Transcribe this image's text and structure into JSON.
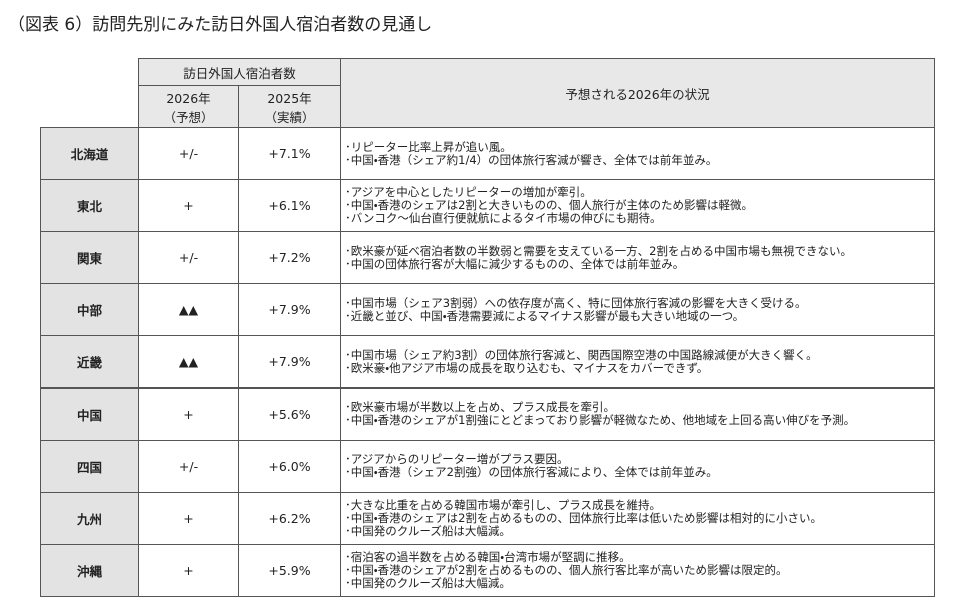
{
  "title": "（図表 6）訪問先別にみた訪日外国人宿泊者数の見通し",
  "header": {
    "group": "訪日外国人宿泊者数",
    "col_2026": [
      "2026年",
      "（予想）"
    ],
    "col_2025": [
      "2025年",
      "（実績）"
    ],
    "notes": "予想される2026年の状況"
  },
  "rows": [
    {
      "region": "北海道",
      "forecast": "+/-",
      "actual": "+7.1%",
      "notes": [
        "･リピーター比率上昇が追い風。",
        "･中国・香港（シェア約1/4）の団体旅行客減が響き、全体では前年並み。"
      ]
    },
    {
      "region": "東北",
      "forecast": "+",
      "actual": "+6.1%",
      "notes": [
        "･アジアを中心としたリピーターの増加が牽引。",
        "･中国・香港のシェアは2割と大きいものの、個人旅行が主体のため影響は軽微。",
        "･バンコク～仙台直行便就航によるタイ市場の伸びにも期待。"
      ]
    },
    {
      "region": "関東",
      "forecast": "+/-",
      "actual": "+7.2%",
      "notes": [
        "･欧米豪が延べ宿泊者数の半数弱と需要を支えている一方、2割を占める中国市場も無視できない。",
        "･中国の団体旅行客が大幅に減少するものの、全体では前年並み。"
      ]
    },
    {
      "region": "中部",
      "forecast": "▲▲",
      "actual": "+7.9%",
      "notes": [
        "･中国市場（シェア3割弱）への依存度が高く、特に団体旅行客減の影響を大きく受ける。",
        "･近畿と並び、中国・香港需要減によるマイナス影響が最も大きい地域の一つ。"
      ]
    },
    {
      "region": "近畿",
      "forecast": "▲▲",
      "actual": "+7.9%",
      "notes": [
        "･中国市場（シェア約3割）の団体旅行客減と、関西国際空港の中国路線減便が大きく響く。",
        "･欧米豪・他アジア市場の成長を取り込むも、マイナスをカバーできず。"
      ]
    },
    {
      "region": "中国",
      "forecast": "+",
      "actual": "+5.6%",
      "notes": [
        "･欧米豪市場が半数以上を占め、プラス成長を牽引。",
        "･中国・香港のシェアが1割強にとどまっており影響が軽微なため、他地域を上回る高い伸びを予測。"
      ]
    },
    {
      "region": "四国",
      "forecast": "+/-",
      "actual": "+6.0%",
      "notes": [
        "･アジアからのリピーター増がプラス要因。",
        "･中国・香港（シェア2割強）の団体旅行客減により、全体では前年並み。"
      ]
    },
    {
      "region": "九州",
      "forecast": "+",
      "actual": "+6.2%",
      "notes": [
        "･大きな比重を占める韓国市場が牽引し、プラス成長を維持。",
        "･中国・香港のシェアは2割を占めるものの、団体旅行比率は低いため影響は相対的に小さい。",
        "･中国発のクルーズ船は大幅減。"
      ]
    },
    {
      "region": "沖縄",
      "forecast": "+",
      "actual": "+5.9%",
      "notes": [
        "･宿泊客の過半数を占める韓国・台湾市場が堅調に推移。",
        "･中国・香港のシェアが2割を占めるものの、個人旅行客比率が高いため影響は限定的。",
        "･中国発のクルーズ船は大幅減。"
      ]
    }
  ]
}
